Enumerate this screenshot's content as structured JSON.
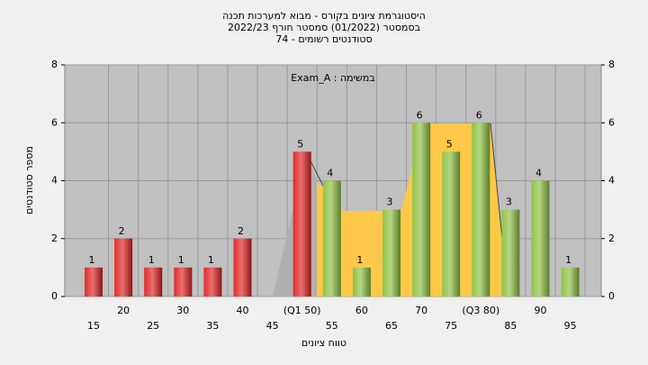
{
  "chart_data": {
    "type": "bar",
    "title": [
      "היסטוגרמת ציונים בקורס - מבוא למערכות תכנה",
      "בסמסטר  (01/2022)  סמסטר חורף 2022/23",
      "סטודנטים רשומים - 74"
    ],
    "annotation": "Exam_A : במשימה",
    "x_label": "טווח ציונים",
    "y_label": "מספר סטודנטים",
    "categories": [
      "15",
      "20",
      "25",
      "30",
      "35",
      "40",
      "45",
      "(Q1 50)",
      "55",
      "60",
      "65",
      "70",
      "75",
      "(Q3 80)",
      "85",
      "90",
      "95"
    ],
    "values": [
      1,
      2,
      1,
      1,
      1,
      2,
      0,
      5,
      4,
      1,
      3,
      6,
      5,
      6,
      3,
      4,
      1
    ],
    "colors": [
      "#e02020",
      "#e02020",
      "#e02020",
      "#e02020",
      "#e02020",
      "#e02020",
      "#e02020",
      "#e02020",
      "#8cc040",
      "#8cc040",
      "#8cc040",
      "#8cc040",
      "#8cc040",
      "#8cc040",
      "#8cc040",
      "#8cc040",
      "#8cc040"
    ],
    "ylim": [
      0,
      8
    ],
    "yticks": [
      0,
      2,
      4,
      6,
      8
    ],
    "y2lim": [
      0,
      8
    ],
    "y2ticks": [
      0,
      2,
      4,
      6,
      8
    ],
    "grid": true
  }
}
